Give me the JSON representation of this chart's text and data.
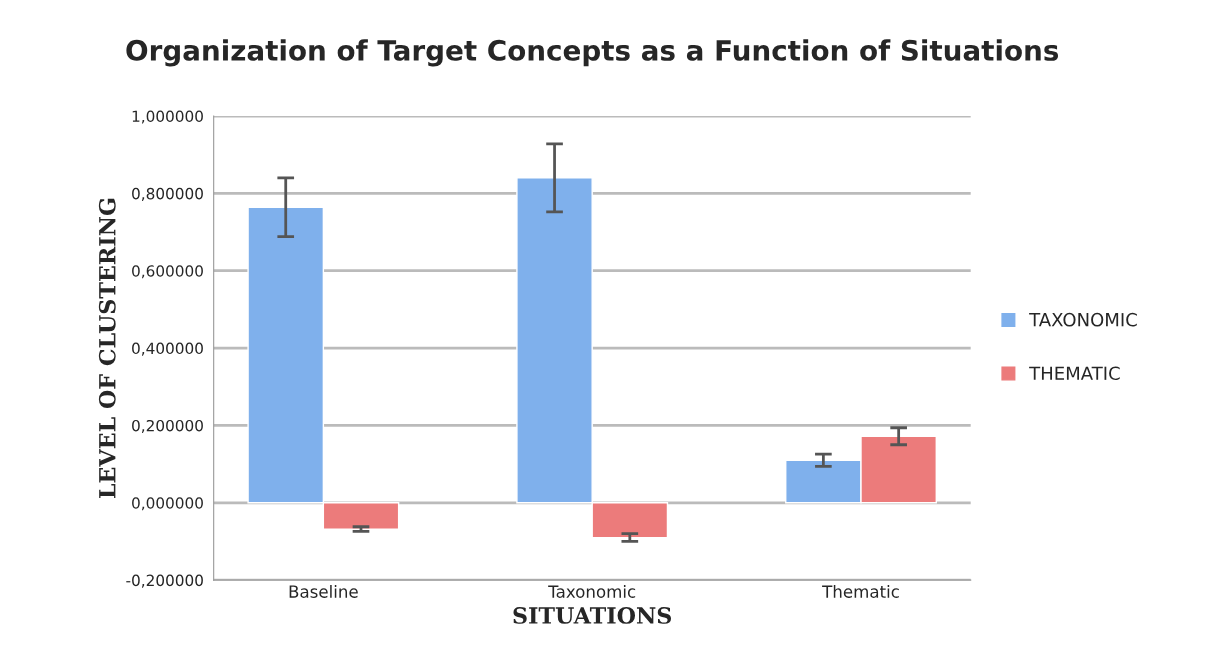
{
  "chart_data": {
    "type": "bar",
    "title": "Organization of Target Concepts as a Function of Situations",
    "xlabel": "SITUATIONS",
    "ylabel": "LEVEL OF CLUSTERING",
    "categories": [
      "Baseline",
      "Taxonomic",
      "Thematic"
    ],
    "series": [
      {
        "name": "TAXONOMIC",
        "color": "#7fb0ec",
        "values": [
          0.764,
          0.84,
          0.11
        ],
        "errors": [
          0.076,
          0.088,
          0.016
        ]
      },
      {
        "name": "THEMATIC",
        "color": "#ec7b7b",
        "values": [
          -0.068,
          -0.09,
          0.172
        ],
        "errors": [
          0.006,
          0.01,
          0.022
        ]
      }
    ],
    "ylim": [
      -0.2,
      1.0
    ],
    "yticks": [
      {
        "value": -0.2,
        "label": "-0,200000"
      },
      {
        "value": 0,
        "label": "0,000000"
      },
      {
        "value": 0.2,
        "label": "0,200000"
      },
      {
        "value": 0.4,
        "label": "0,400000"
      },
      {
        "value": 0.6,
        "label": "0,600000"
      },
      {
        "value": 0.8,
        "label": "0,800000"
      },
      {
        "value": 1.0,
        "label": "1,000000"
      }
    ],
    "grid": "y",
    "legend": "right"
  }
}
